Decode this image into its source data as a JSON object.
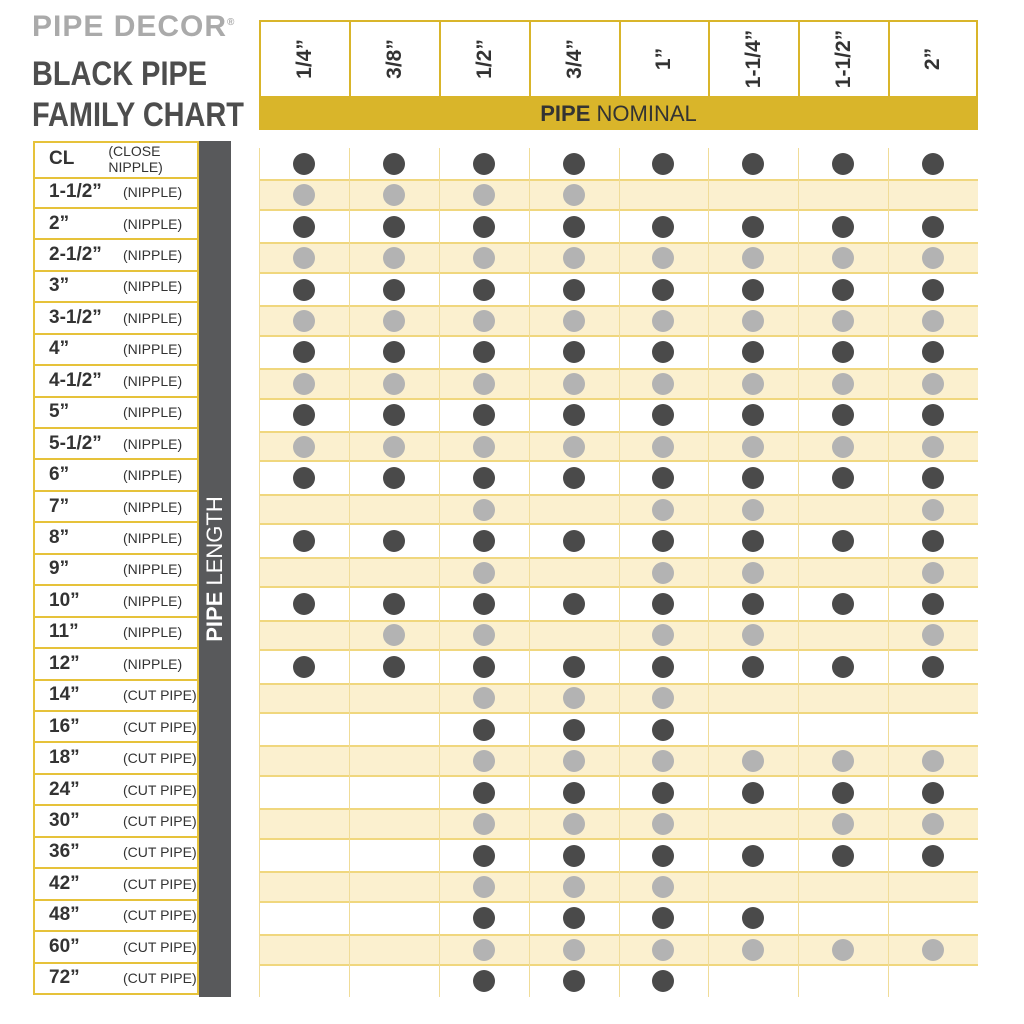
{
  "brand": {
    "name": "PIPE DECOR",
    "mark": "®"
  },
  "title": {
    "line1": "BLACK PIPE",
    "line2": "FAMILY CHART"
  },
  "columns": {
    "label_bold": "PIPE",
    "label": "NOMINAL",
    "items": [
      "1/4”",
      "3/8”",
      "1/2”",
      "3/4”",
      "1”",
      "1-1/4”",
      "1-1/2”",
      "2”"
    ]
  },
  "rows_label": {
    "label_bold": "PIPE",
    "label": "LENGTH"
  },
  "rows": [
    {
      "length": "CL",
      "kind": "(CLOSE NIPPLE)",
      "available": [
        true,
        true,
        true,
        true,
        true,
        true,
        true,
        true
      ]
    },
    {
      "length": "1-1/2”",
      "kind": "(NIPPLE)",
      "available": [
        true,
        true,
        true,
        true,
        false,
        false,
        false,
        false
      ]
    },
    {
      "length": "2”",
      "kind": "(NIPPLE)",
      "available": [
        true,
        true,
        true,
        true,
        true,
        true,
        true,
        true
      ]
    },
    {
      "length": "2-1/2”",
      "kind": "(NIPPLE)",
      "available": [
        true,
        true,
        true,
        true,
        true,
        true,
        true,
        true
      ]
    },
    {
      "length": "3”",
      "kind": "(NIPPLE)",
      "available": [
        true,
        true,
        true,
        true,
        true,
        true,
        true,
        true
      ]
    },
    {
      "length": "3-1/2”",
      "kind": "(NIPPLE)",
      "available": [
        true,
        true,
        true,
        true,
        true,
        true,
        true,
        true
      ]
    },
    {
      "length": "4”",
      "kind": "(NIPPLE)",
      "available": [
        true,
        true,
        true,
        true,
        true,
        true,
        true,
        true
      ]
    },
    {
      "length": "4-1/2”",
      "kind": "(NIPPLE)",
      "available": [
        true,
        true,
        true,
        true,
        true,
        true,
        true,
        true
      ]
    },
    {
      "length": "5”",
      "kind": "(NIPPLE)",
      "available": [
        true,
        true,
        true,
        true,
        true,
        true,
        true,
        true
      ]
    },
    {
      "length": "5-1/2”",
      "kind": "(NIPPLE)",
      "available": [
        true,
        true,
        true,
        true,
        true,
        true,
        true,
        true
      ]
    },
    {
      "length": "6”",
      "kind": "(NIPPLE)",
      "available": [
        true,
        true,
        true,
        true,
        true,
        true,
        true,
        true
      ]
    },
    {
      "length": "7”",
      "kind": "(NIPPLE)",
      "available": [
        false,
        false,
        true,
        false,
        true,
        true,
        false,
        true
      ]
    },
    {
      "length": "8”",
      "kind": "(NIPPLE)",
      "available": [
        true,
        true,
        true,
        true,
        true,
        true,
        true,
        true
      ]
    },
    {
      "length": "9”",
      "kind": "(NIPPLE)",
      "available": [
        false,
        false,
        true,
        false,
        true,
        true,
        false,
        true
      ]
    },
    {
      "length": "10”",
      "kind": "(NIPPLE)",
      "available": [
        true,
        true,
        true,
        true,
        true,
        true,
        true,
        true
      ]
    },
    {
      "length": "11”",
      "kind": "(NIPPLE)",
      "available": [
        false,
        true,
        true,
        false,
        true,
        true,
        false,
        true
      ]
    },
    {
      "length": "12”",
      "kind": "(NIPPLE)",
      "available": [
        true,
        true,
        true,
        true,
        true,
        true,
        true,
        true
      ]
    },
    {
      "length": "14”",
      "kind": "(CUT PIPE)",
      "available": [
        false,
        false,
        true,
        true,
        true,
        false,
        false,
        false
      ]
    },
    {
      "length": "16”",
      "kind": "(CUT PIPE)",
      "available": [
        false,
        false,
        true,
        true,
        true,
        false,
        false,
        false
      ]
    },
    {
      "length": "18”",
      "kind": "(CUT PIPE)",
      "available": [
        false,
        false,
        true,
        true,
        true,
        true,
        true,
        true
      ]
    },
    {
      "length": "24”",
      "kind": "(CUT PIPE)",
      "available": [
        false,
        false,
        true,
        true,
        true,
        true,
        true,
        true
      ]
    },
    {
      "length": "30”",
      "kind": "(CUT PIPE)",
      "available": [
        false,
        false,
        true,
        true,
        true,
        false,
        true,
        true
      ]
    },
    {
      "length": "36”",
      "kind": "(CUT PIPE)",
      "available": [
        false,
        false,
        true,
        true,
        true,
        true,
        true,
        true
      ]
    },
    {
      "length": "42”",
      "kind": "(CUT PIPE)",
      "available": [
        false,
        false,
        true,
        true,
        true,
        false,
        false,
        false
      ]
    },
    {
      "length": "48”",
      "kind": "(CUT PIPE)",
      "available": [
        false,
        false,
        true,
        true,
        true,
        true,
        false,
        false
      ]
    },
    {
      "length": "60”",
      "kind": "(CUT PIPE)",
      "available": [
        false,
        false,
        true,
        true,
        true,
        true,
        true,
        true
      ]
    },
    {
      "length": "72”",
      "kind": "(CUT PIPE)",
      "available": [
        false,
        false,
        true,
        true,
        true,
        false,
        false,
        false
      ]
    }
  ]
}
